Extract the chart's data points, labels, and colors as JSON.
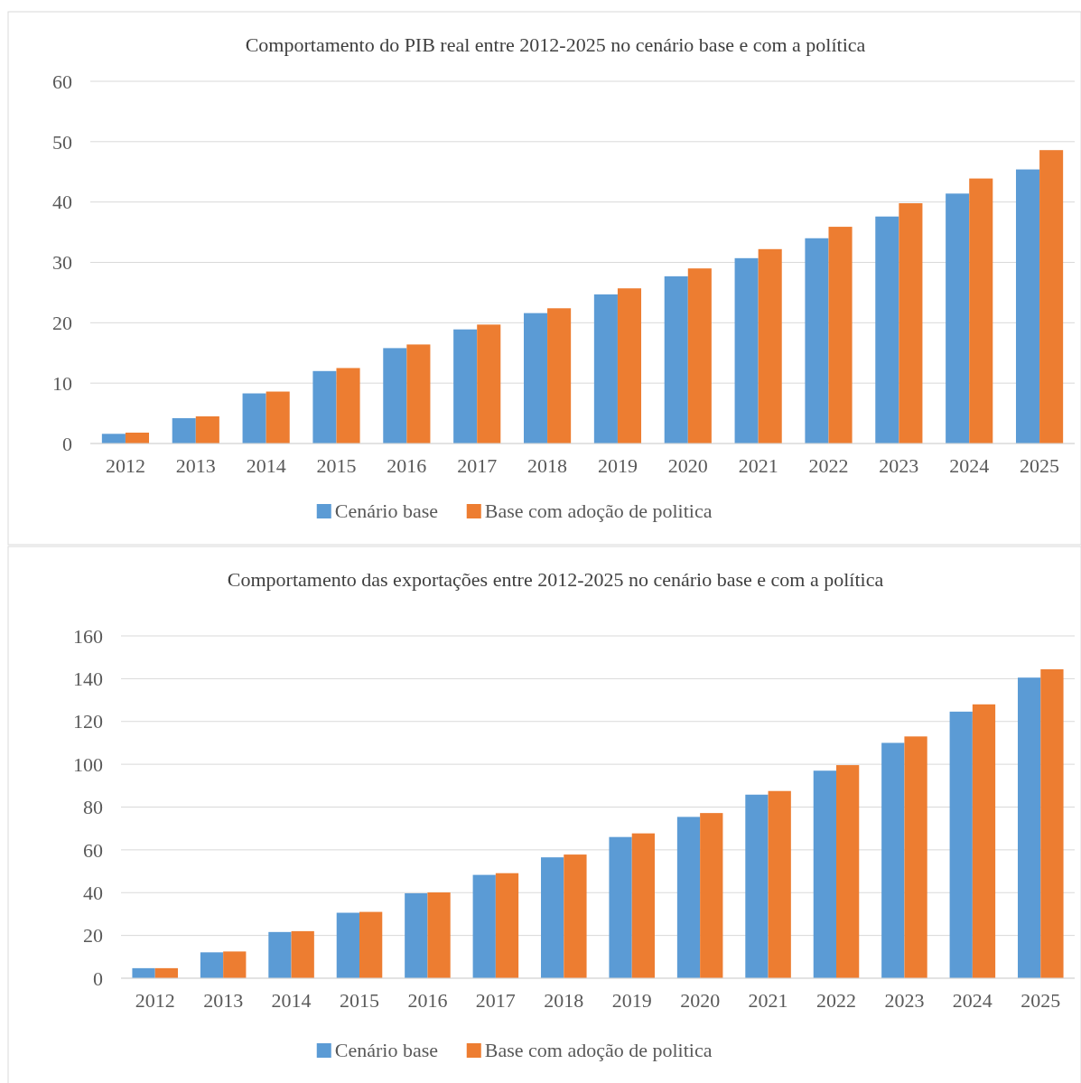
{
  "chart_data": [
    {
      "type": "bar",
      "title": "Comportamento do PIB real entre 2012-2025 no cenário base e com a política",
      "categories": [
        "2012",
        "2013",
        "2014",
        "2015",
        "2016",
        "2017",
        "2018",
        "2019",
        "2020",
        "2021",
        "2022",
        "2023",
        "2024",
        "2025"
      ],
      "ylim": [
        0,
        60
      ],
      "yticks": [
        0,
        10,
        20,
        30,
        40,
        50,
        60
      ],
      "grid": "y",
      "legend": "bottom",
      "series": [
        {
          "name": "Cenário base",
          "color": "#5b9bd5",
          "values": [
            1.6,
            4.2,
            8.3,
            12.0,
            15.8,
            18.9,
            21.6,
            24.7,
            27.7,
            30.7,
            34.0,
            37.6,
            41.4,
            45.4
          ]
        },
        {
          "name": "Base com adoção de politica",
          "color": "#ed7d31",
          "values": [
            1.8,
            4.5,
            8.6,
            12.5,
            16.4,
            19.7,
            22.4,
            25.7,
            29.0,
            32.2,
            35.9,
            39.8,
            43.9,
            48.6
          ]
        }
      ]
    },
    {
      "type": "bar",
      "title": "Comportamento das exportações entre 2012-2025 no cenário base e com a política",
      "categories": [
        "2012",
        "2013",
        "2014",
        "2015",
        "2016",
        "2017",
        "2018",
        "2019",
        "2020",
        "2021",
        "2022",
        "2023",
        "2024",
        "2025"
      ],
      "ylim": [
        0,
        160
      ],
      "yticks": [
        0,
        20,
        40,
        60,
        80,
        100,
        120,
        140,
        160
      ],
      "grid": "y",
      "legend": "bottom",
      "series": [
        {
          "name": "Cenário base",
          "color": "#5b9bd5",
          "values": [
            4.7,
            12.1,
            21.6,
            30.6,
            39.7,
            48.3,
            56.5,
            66.0,
            75.4,
            85.8,
            97.0,
            110.0,
            124.6,
            140.5
          ]
        },
        {
          "name": "Base com adoção de politica",
          "color": "#ed7d31",
          "values": [
            4.7,
            12.5,
            22.0,
            31.0,
            40.1,
            49.1,
            57.8,
            67.7,
            77.2,
            87.5,
            99.6,
            113.0,
            128.0,
            144.4
          ]
        }
      ]
    }
  ]
}
